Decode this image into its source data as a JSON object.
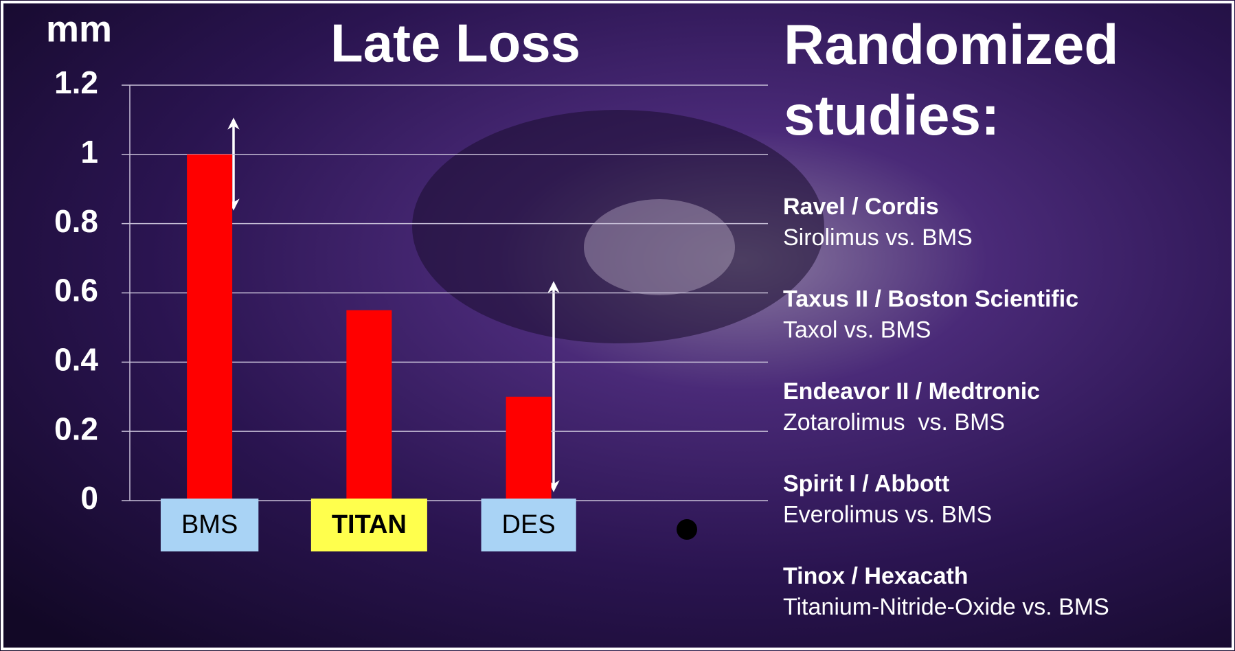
{
  "chart_data": {
    "type": "bar",
    "title": "Late Loss",
    "y_label": "mm",
    "categories": [
      "BMS",
      "TITAN",
      "DES",
      null
    ],
    "values": [
      1,
      0.55,
      0.3,
      null
    ],
    "color": "#ff0000",
    "label_colors": [
      "#a9d3f5",
      "#ffff4d",
      "#a9d3f5",
      null
    ],
    "ylim": [
      0,
      1.2
    ],
    "yticks": [
      0,
      0.2,
      0.4,
      0.6,
      0.8,
      1,
      1.2
    ],
    "grid": true
  },
  "sidebar": {
    "title": "Randomized studies:",
    "studies": [
      {
        "name": "Ravel / Cordis",
        "detail": "Sirolimus vs. BMS"
      },
      {
        "name": "Taxus II / Boston Scientific",
        "detail": "Taxol vs. BMS"
      },
      {
        "name": "Endeavor II / Medtronic",
        "detail": "Zotarolimus  vs. BMS"
      },
      {
        "name": "Spirit I / Abbott",
        "detail": "Everolimus vs. BMS"
      },
      {
        "name": "Tinox / Hexacath",
        "detail": "Titanium-Nitride-Oxide vs. BMS"
      }
    ]
  }
}
